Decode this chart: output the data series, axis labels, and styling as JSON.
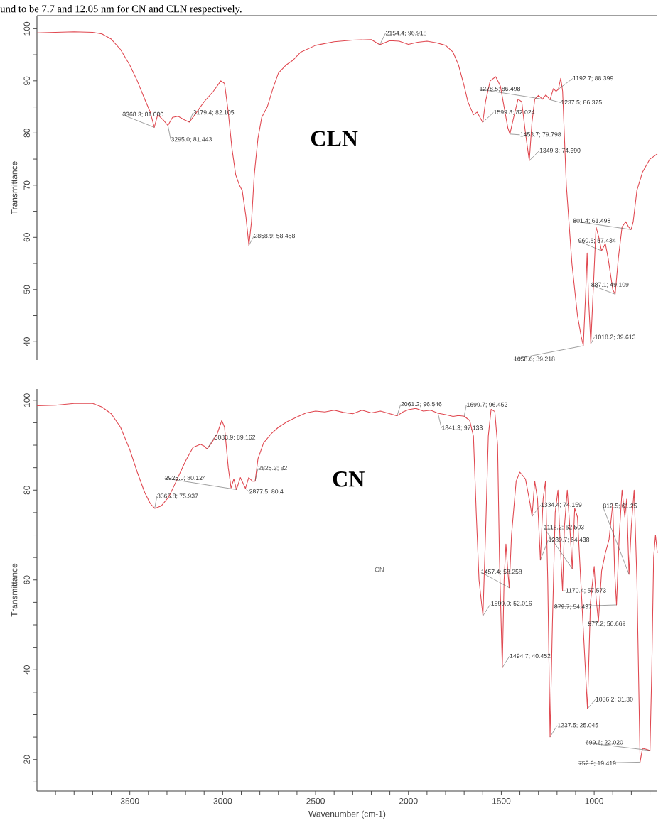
{
  "chart_data": [
    {
      "type": "line",
      "ylabel": "Transmittance",
      "tick_labels": "y",
      "xlim": [
        4000,
        660
      ],
      "ylim": [
        36.5,
        102.5
      ],
      "yticks": [
        40,
        {
          "value": 45,
          "label": null
        },
        50,
        {
          "value": 55,
          "label": null
        },
        60,
        {
          "value": 65,
          "label": null
        },
        70,
        {
          "value": 75,
          "label": null
        },
        80,
        {
          "value": 85,
          "label": null
        },
        90,
        {
          "value": 95,
          "label": null
        },
        100
      ],
      "series": [
        {
          "color": "#e04850",
          "x": [
            4000,
            3900,
            3800,
            3700,
            3650,
            3600,
            3550,
            3500,
            3460,
            3420,
            3390,
            3368.3,
            3350,
            3320,
            3295,
            3270,
            3240,
            3210,
            3179.4,
            3150,
            3100,
            3050,
            3010,
            2990,
            2970,
            2950,
            2930,
            2910,
            2895,
            2875,
            2858.9,
            2845,
            2830,
            2810,
            2790,
            2760,
            2730,
            2700,
            2660,
            2620,
            2580,
            2500,
            2400,
            2300,
            2200,
            2154.4,
            2100,
            2050,
            2000,
            1950,
            1900,
            1850,
            1800,
            1760,
            1730,
            1700,
            1680,
            1650,
            1630,
            1615,
            1599.8,
            1585,
            1560,
            1530,
            1505,
            1480,
            1465,
            1453.7,
            1440,
            1410,
            1390,
            1370,
            1349.3,
            1335,
            1320,
            1300,
            1278.5,
            1260,
            1237.5,
            1220,
            1205,
            1192.7,
            1180,
            1170,
            1150,
            1120,
            1090,
            1070,
            1058.6,
            1045,
            1038,
            1030,
            1018.2,
            1005,
            990,
            975,
            960.5,
            940,
            925,
            900,
            887.1,
            870,
            850,
            830,
            815,
            801.4,
            790,
            770,
            740,
            700,
            660
          ],
          "values": [
            99.2,
            99.3,
            99.4,
            99.3,
            99.0,
            98.0,
            96.0,
            93.0,
            90.0,
            86.5,
            84.0,
            81.08,
            83.5,
            82.5,
            81.44,
            83.0,
            83.2,
            82.6,
            82.1,
            83.5,
            86.0,
            88.0,
            90.0,
            89.5,
            84.0,
            77.0,
            72.0,
            70.0,
            69.0,
            64.0,
            58.46,
            63.0,
            72.0,
            79.0,
            83.0,
            85.0,
            88.5,
            91.5,
            93.0,
            94.0,
            95.5,
            96.8,
            97.5,
            97.8,
            97.9,
            96.92,
            97.7,
            97.6,
            97.0,
            97.4,
            97.6,
            97.3,
            96.8,
            95.5,
            93.0,
            89.0,
            86.0,
            83.5,
            84.0,
            83.0,
            82.02,
            86.0,
            90.0,
            90.8,
            89.0,
            84.0,
            81.0,
            79.8,
            82.0,
            86.5,
            86.0,
            80.0,
            74.69,
            82.0,
            86.5,
            87.2,
            86.5,
            87.3,
            86.38,
            88.5,
            88.0,
            88.4,
            90.5,
            88.0,
            70.0,
            55.0,
            45.0,
            41.0,
            39.22,
            50.0,
            57.0,
            48.0,
            39.61,
            50.0,
            62.0,
            60.0,
            57.43,
            58.8,
            56.0,
            50.0,
            49.11,
            56.0,
            62.0,
            63.0,
            62.0,
            61.5,
            63.0,
            69.0,
            72.5,
            75.0,
            76.0
          ]
        }
      ],
      "annotations": [
        "und to be 7.7 and 12.05 nm for CN and CLN respectively.",
        "CLN",
        {
          "text": "3368.3; 81.080",
          "x": 3368.3,
          "y": 81.08
        },
        {
          "text": "3179.4; 82.105",
          "x": 3179.4,
          "y": 82.105
        },
        {
          "text": "3295.0; 81.443",
          "x": 3295.0,
          "y": 81.443
        },
        {
          "text": "2858.9; 58.458",
          "x": 2858.9,
          "y": 58.458
        },
        {
          "text": "2154.4; 96.918",
          "x": 2154.4,
          "y": 96.918
        },
        {
          "text": "1278.5; 86.498",
          "x": 1278.5,
          "y": 86.498
        },
        {
          "text": "1599.8; 82.024",
          "x": 1599.8,
          "y": 82.024
        },
        {
          "text": "1453.7; 79.798",
          "x": 1453.7,
          "y": 79.798
        },
        {
          "text": "1349.3; 74.690",
          "x": 1349.3,
          "y": 74.69
        },
        {
          "text": "1192.7; 88.399",
          "x": 1192.7,
          "y": 88.399
        },
        {
          "text": "1237.5; 86.375",
          "x": 1237.5,
          "y": 86.375
        },
        {
          "text": "801.4; 61.498",
          "x": 801.4,
          "y": 61.498
        },
        {
          "text": "960.5; 57.434",
          "x": 960.5,
          "y": 57.434
        },
        {
          "text": "887.1; 49.109",
          "x": 887.1,
          "y": 49.109
        },
        {
          "text": "1018.2; 39.613",
          "x": 1018.2,
          "y": 39.613
        },
        {
          "text": "1058.6; 39.218",
          "x": 1058.6,
          "y": 39.218
        }
      ]
    },
    {
      "type": "line",
      "ylabel": "Transmittance",
      "xlabel": "Wavenumber (cm-1)",
      "xlim": [
        4000,
        660
      ],
      "ylim": [
        13,
        102.5
      ],
      "xticks": [
        {
          "value": 3900,
          "label": null
        },
        {
          "value": 3800,
          "label": null
        },
        {
          "value": 3700,
          "label": null
        },
        {
          "value": 3600,
          "label": null
        },
        3500,
        {
          "value": 3400,
          "label": null
        },
        {
          "value": 3300,
          "label": null
        },
        {
          "value": 3200,
          "label": null
        },
        {
          "value": 3100,
          "label": null
        },
        3000,
        {
          "value": 2900,
          "label": null
        },
        {
          "value": 2800,
          "label": null
        },
        {
          "value": 2700,
          "label": null
        },
        {
          "value": 2600,
          "label": null
        },
        2500,
        {
          "value": 2400,
          "label": null
        },
        {
          "value": 2300,
          "label": null
        },
        {
          "value": 2200,
          "label": null
        },
        {
          "value": 2100,
          "label": null
        },
        2000,
        {
          "value": 1900,
          "label": null
        },
        {
          "value": 1800,
          "label": null
        },
        {
          "value": 1700,
          "label": null
        },
        {
          "value": 1600,
          "label": null
        },
        1500,
        {
          "value": 1400,
          "label": null
        },
        {
          "value": 1300,
          "label": null
        },
        {
          "value": 1200,
          "label": null
        },
        {
          "value": 1100,
          "label": null
        },
        1000,
        {
          "value": 900,
          "label": null
        },
        {
          "value": 800,
          "label": null
        },
        {
          "value": 700,
          "label": null
        }
      ],
      "yticks": [
        {
          "value": 15,
          "label": null
        },
        20,
        {
          "value": 25,
          "label": null
        },
        {
          "value": 30,
          "label": null
        },
        {
          "value": 35,
          "label": null
        },
        40,
        {
          "value": 45,
          "label": null
        },
        {
          "value": 50,
          "label": null
        },
        {
          "value": 55,
          "label": null
        },
        60,
        {
          "value": 65,
          "label": null
        },
        {
          "value": 70,
          "label": null
        },
        {
          "value": 75,
          "label": null
        },
        80,
        {
          "value": 85,
          "label": null
        },
        {
          "value": 90,
          "label": null
        },
        {
          "value": 95,
          "label": null
        },
        100
      ],
      "series": [
        {
          "color": "#e04850",
          "x": [
            4000,
            3900,
            3800,
            3700,
            3650,
            3600,
            3550,
            3500,
            3460,
            3420,
            3390,
            3365.8,
            3330,
            3290,
            3250,
            3200,
            3160,
            3120,
            3100,
            3083.9,
            3060,
            3030,
            3005,
            2990,
            2970,
            2955,
            2940,
            2926,
            2905,
            2890,
            2877.5,
            2860,
            2840,
            2825.3,
            2810,
            2780,
            2740,
            2700,
            2650,
            2600,
            2550,
            2500,
            2450,
            2400,
            2350,
            2300,
            2250,
            2200,
            2150,
            2100,
            2061.2,
            2030,
            2000,
            1960,
            1920,
            1880,
            1841.3,
            1800,
            1760,
            1730,
            1699.7,
            1670,
            1650,
            1635,
            1620,
            1599.0,
            1585,
            1570,
            1555,
            1535,
            1520,
            1510,
            1494.7,
            1485,
            1475,
            1465,
            1457.4,
            1445,
            1420,
            1400,
            1370,
            1345,
            1334.4,
            1320,
            1305,
            1289.7,
            1275,
            1262,
            1250,
            1237.5,
            1225,
            1210,
            1195,
            1185,
            1170.4,
            1160,
            1145,
            1130,
            1118.2,
            1105,
            1090,
            1075,
            1060,
            1036.2,
            1020,
            1000,
            990,
            977.2,
            960,
            940,
            920,
            900,
            890,
            879.7,
            865,
            850,
            835,
            825,
            812.5,
            800,
            785,
            770,
            752.9,
            740,
            720,
            699.6,
            690,
            680,
            670,
            660
          ],
          "values": [
            98.8,
            98.9,
            99.3,
            99.3,
            98.5,
            97.0,
            94.0,
            89.0,
            84.0,
            79.5,
            77.0,
            75.94,
            76.5,
            78.5,
            82.0,
            86.5,
            89.5,
            90.2,
            89.8,
            89.16,
            90.5,
            92.5,
            95.5,
            94.0,
            85.0,
            80.5,
            82.5,
            80.12,
            82.8,
            81.5,
            80.4,
            82.8,
            82.0,
            82.0,
            87.0,
            90.5,
            92.5,
            94.0,
            95.3,
            96.3,
            97.2,
            97.6,
            97.4,
            97.8,
            97.3,
            97.0,
            97.8,
            97.2,
            97.6,
            97.0,
            96.55,
            97.4,
            97.9,
            98.2,
            97.6,
            97.8,
            97.13,
            96.8,
            96.4,
            96.6,
            96.45,
            95.5,
            92.0,
            75.0,
            60.0,
            52.02,
            70.0,
            92.0,
            98.0,
            97.5,
            90.0,
            65.0,
            40.45,
            60.0,
            68.0,
            62.0,
            58.26,
            70.0,
            82.0,
            84.0,
            82.5,
            77.0,
            74.16,
            82.0,
            78.0,
            64.44,
            78.0,
            82.0,
            60.0,
            25.05,
            50.0,
            75.0,
            80.0,
            70.0,
            57.57,
            72.0,
            80.0,
            71.0,
            62.5,
            76.0,
            74.0,
            62.0,
            50.0,
            31.3,
            55.0,
            63.0,
            56.0,
            50.67,
            62.0,
            66.0,
            69.0,
            77.0,
            62.0,
            54.44,
            70.0,
            80.0,
            74.0,
            78.0,
            61.25,
            72.0,
            80.0,
            60.0,
            19.42,
            22.5,
            22.3,
            22.02,
            40.0,
            65.0,
            70.0,
            66.0
          ]
        }
      ],
      "annotations": [
        "CN",
        "CN",
        {
          "text": "2061.2; 96.546",
          "x": 2061.2,
          "y": 96.546
        },
        {
          "text": "1699.7; 96.452",
          "x": 1699.7,
          "y": 96.452
        },
        {
          "text": "1841.3; 97.133",
          "x": 1841.3,
          "y": 97.133
        },
        {
          "text": "3083.9; 89.162",
          "x": 3083.9,
          "y": 89.162
        },
        {
          "text": "2926.0; 80.124",
          "x": 2926.0,
          "y": 80.124
        },
        {
          "text": "3365.8; 75.937",
          "x": 3365.8,
          "y": 75.937
        },
        {
          "text": "2825.3; 82",
          "x": 2825.3,
          "y": 82
        },
        {
          "text": "2877.5; 80.4",
          "x": 2877.5,
          "y": 80.4
        },
        {
          "text": "1334.4; 74.159",
          "x": 1334.4,
          "y": 74.159
        },
        {
          "text": "812.5; 61.25",
          "x": 812.5,
          "y": 61.25
        },
        {
          "text": "1118.2; 62.503",
          "x": 1118.2,
          "y": 62.503
        },
        {
          "text": "1289.7; 64.438",
          "x": 1289.7,
          "y": 64.438
        },
        {
          "text": "1457.4; 58.258",
          "x": 1457.4,
          "y": 58.258
        },
        {
          "text": "1170.4; 57.573",
          "x": 1170.4,
          "y": 57.573
        },
        {
          "text": "1599.0; 52.016",
          "x": 1599.0,
          "y": 52.016
        },
        {
          "text": "879.7; 54.437",
          "x": 879.7,
          "y": 54.437
        },
        {
          "text": "977.2; 50.669",
          "x": 977.2,
          "y": 50.669
        },
        {
          "text": "1494.7; 40.452",
          "x": 1494.7,
          "y": 40.452
        },
        {
          "text": "1036.2; 31.30",
          "x": 1036.2,
          "y": 31.3
        },
        {
          "text": "1237.5; 25.045",
          "x": 1237.5,
          "y": 25.045
        },
        {
          "text": "699.6; 22.020",
          "x": 699.6,
          "y": 22.02
        },
        {
          "text": "752.9; 19.419",
          "x": 752.9,
          "y": 19.419
        }
      ]
    }
  ]
}
